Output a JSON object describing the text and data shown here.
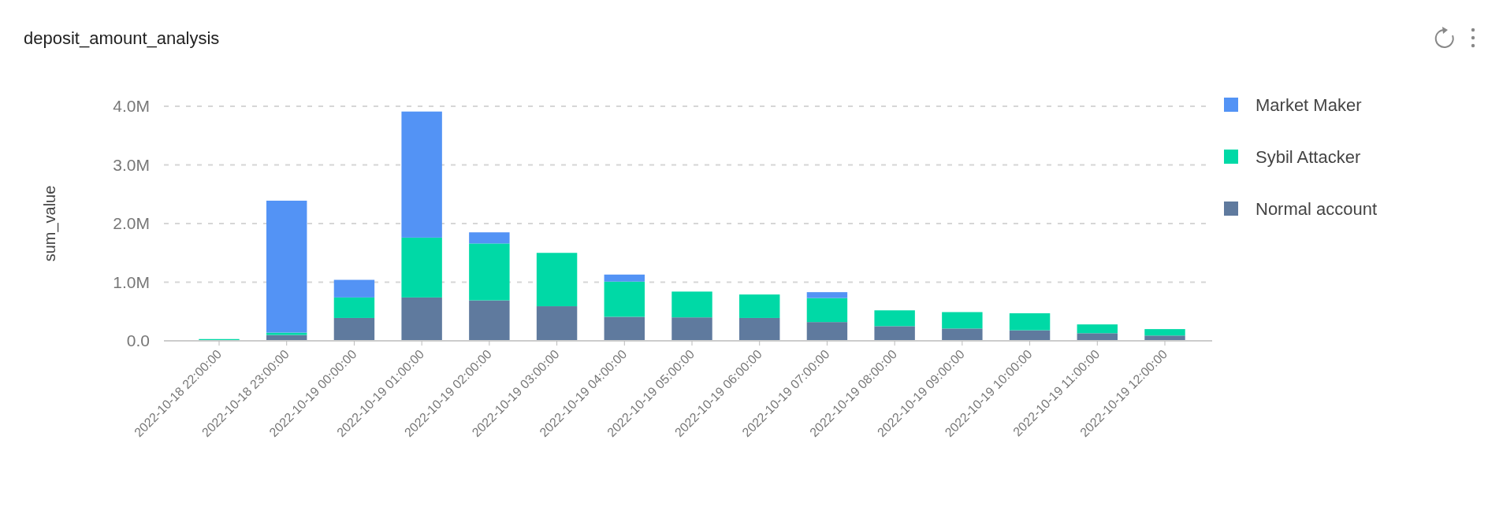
{
  "chart_data": {
    "type": "bar",
    "stacked": true,
    "title": "deposit_amount_analysis",
    "ylabel": "sum_value",
    "categories": [
      "2022-10-18 22:00:00",
      "2022-10-18 23:00:00",
      "2022-10-19 00:00:00",
      "2022-10-19 01:00:00",
      "2022-10-19 02:00:00",
      "2022-10-19 03:00:00",
      "2022-10-19 04:00:00",
      "2022-10-19 05:00:00",
      "2022-10-19 06:00:00",
      "2022-10-19 07:00:00",
      "2022-10-19 08:00:00",
      "2022-10-19 09:00:00",
      "2022-10-19 10:00:00",
      "2022-10-19 11:00:00",
      "2022-10-19 12:00:00"
    ],
    "series": [
      {
        "name": "Normal account",
        "color": "#5f7a9e",
        "values": [
          0.01,
          0.1,
          0.39,
          0.74,
          0.69,
          0.59,
          0.41,
          0.4,
          0.39,
          0.32,
          0.25,
          0.21,
          0.18,
          0.13,
          0.09
        ]
      },
      {
        "name": "Sybil Attacker",
        "color": "#00d9a6",
        "values": [
          0.02,
          0.04,
          0.35,
          1.02,
          0.97,
          0.91,
          0.6,
          0.44,
          0.4,
          0.41,
          0.27,
          0.28,
          0.29,
          0.15,
          0.11
        ]
      },
      {
        "name": "Market Maker",
        "color": "#5393f5",
        "values": [
          0,
          2.25,
          0.3,
          2.15,
          0.19,
          0,
          0.12,
          0,
          0,
          0.1,
          0,
          0,
          0,
          0,
          0
        ]
      }
    ],
    "ylim": [
      0,
      4
    ],
    "yticks": [
      {
        "value": 0,
        "label": "0.0"
      },
      {
        "value": 1,
        "label": "1.0M"
      },
      {
        "value": 2,
        "label": "2.0M"
      },
      {
        "value": 3,
        "label": "3.0M"
      },
      {
        "value": 4,
        "label": "4.0M"
      }
    ],
    "grid": "y",
    "legend": "right"
  }
}
